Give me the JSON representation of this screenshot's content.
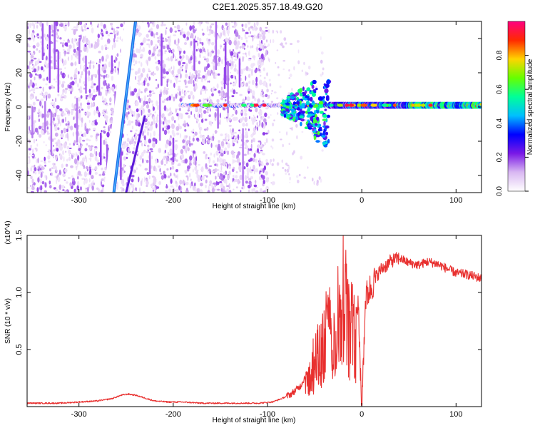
{
  "title": "C2E1.2025.357.18.49.G20",
  "chart_data": [
    {
      "type": "heatmap",
      "name": "spectrogram",
      "xlabel": "Height of straight line (km)",
      "ylabel": "Frequency (Hz)",
      "xlim": [
        -355,
        127
      ],
      "ylim": [
        -50,
        50
      ],
      "xticks": [
        -300,
        -200,
        -100,
        0,
        100
      ],
      "yticks": [
        -40,
        -20,
        0,
        20,
        40
      ],
      "colorbar": {
        "label": "Normalized spectral amplitude",
        "range": [
          0,
          1
        ],
        "ticks": [
          0.0,
          0.2,
          0.4,
          0.6,
          0.8
        ],
        "colors": [
          "#ffffff",
          "#d9b8f2",
          "#7a19e6",
          "#0000ff",
          "#00bfff",
          "#00ff99",
          "#66ff00",
          "#ffd400",
          "#ff2a00",
          "#ff0080"
        ]
      },
      "features": [
        {
          "name": "diagonal streak",
          "x": [
            -268,
            -245
          ],
          "y": [
            -50,
            50
          ],
          "amplitude": 0.2
        },
        {
          "name": "secondary streak",
          "x": [
            -250,
            -230
          ],
          "y": [
            -50,
            -5
          ],
          "amplitude": 0.15
        },
        {
          "name": "carrier line",
          "x_start": -180,
          "x_end": 127,
          "y_center": 1,
          "amplitude_max": 0.95
        },
        {
          "name": "disturbed band",
          "x": [
            -85,
            -35
          ],
          "y": [
            -20,
            12
          ],
          "amplitude": 0.45
        }
      ]
    },
    {
      "type": "line",
      "name": "snr",
      "xlabel": "Height of straight line (km)",
      "ylabel": "SNR (10 * v/v)",
      "multiplier": "(x10^4)",
      "xlim": [
        -355,
        127
      ],
      "ylim": [
        0,
        1.5
      ],
      "xticks": [
        -300,
        -200,
        -100,
        0,
        100
      ],
      "yticks": [
        0.5,
        1.0,
        1.5
      ],
      "color": "#e8302f",
      "series": [
        {
          "name": "SNR",
          "x": [
            -355,
            -340,
            -320,
            -300,
            -280,
            -265,
            -255,
            -248,
            -240,
            -232,
            -220,
            -205,
            -190,
            -170,
            -150,
            -130,
            -110,
            -95,
            -85,
            -75,
            -65,
            -58,
            -52,
            -45,
            -40,
            -35,
            -30,
            -25,
            -20,
            -17,
            -12,
            -8,
            -4,
            0,
            4,
            8,
            12,
            16,
            20,
            25,
            30,
            35,
            40,
            50,
            60,
            70,
            80,
            90,
            100,
            110,
            120,
            127
          ],
          "y": [
            0.03,
            0.03,
            0.03,
            0.04,
            0.05,
            0.07,
            0.1,
            0.11,
            0.1,
            0.08,
            0.05,
            0.04,
            0.04,
            0.03,
            0.03,
            0.03,
            0.03,
            0.04,
            0.07,
            0.11,
            0.18,
            0.3,
            0.45,
            0.55,
            0.75,
            0.9,
            0.62,
            1.05,
            0.85,
            1.2,
            0.92,
            0.86,
            0.9,
            0.02,
            0.95,
            1.02,
            1.08,
            1.15,
            1.2,
            1.23,
            1.27,
            1.29,
            1.3,
            1.26,
            1.24,
            1.27,
            1.25,
            1.21,
            1.17,
            1.16,
            1.14,
            1.12
          ]
        }
      ]
    }
  ]
}
